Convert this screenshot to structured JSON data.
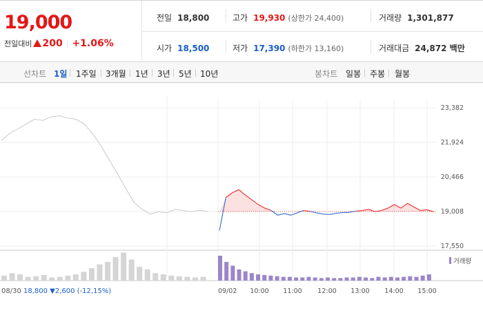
{
  "summary": {
    "current_price": "19,000",
    "change_label": "전일대비",
    "change_amount": "200",
    "change_percent": "+1.06%"
  },
  "stats": {
    "prev_close_label": "전일",
    "prev_close": "18,800",
    "high_label": "고가",
    "high": "19,930",
    "upper_limit": "(상한가 24,400)",
    "volume_label": "거래량",
    "volume": "1,301,877",
    "open_label": "시가",
    "open": "18,500",
    "low_label": "저가",
    "low": "17,390",
    "lower_limit": "(하한가 13,160)",
    "trade_value_label": "거래대금",
    "trade_value": "24,872 백만"
  },
  "tabs": {
    "line_label": "선차트",
    "periods": [
      "1일",
      "1주일",
      "3개월",
      "1년",
      "3년",
      "5년",
      "10년"
    ],
    "active_period": "1일",
    "candle_label": "봉차트",
    "candles": [
      "일봉",
      "주봉",
      "월봉"
    ]
  },
  "colors": {
    "up": "#e51616",
    "down": "#1a5ec9",
    "prev": "#c8c8c8",
    "volume": "#9b86c8"
  },
  "chart_data": {
    "type": "line",
    "y_ticks": [
      "23,382",
      "21,924",
      "20,466",
      "19,008",
      "17,550"
    ],
    "x_ticks": [
      "09/02",
      "10:00",
      "11:00",
      "12:00",
      "13:00",
      "14:00",
      "15:00"
    ],
    "ylim": [
      17550,
      23382
    ],
    "base_price": 19008,
    "prev_day": {
      "values": [
        22000,
        22300,
        22500,
        22700,
        22900,
        22850,
        23000,
        23050,
        22950,
        22900,
        22700,
        22300,
        21800,
        21200,
        20600,
        20000,
        19400,
        19100,
        18900,
        19000,
        18950,
        19100,
        19050,
        19000,
        19050,
        19000
      ]
    },
    "today": {
      "values": [
        18200,
        19600,
        19800,
        19930,
        19700,
        19500,
        19300,
        19150,
        19050,
        18850,
        18920,
        18850,
        18950,
        19050,
        19010,
        18950,
        18900,
        18880,
        18930,
        18960,
        18970,
        19020,
        19050,
        19100,
        19000,
        19050,
        19150,
        19300,
        19150,
        19350,
        19200,
        19050,
        19080,
        19000
      ]
    },
    "volume": {
      "legend": "거래량",
      "prev_day": [
        8,
        12,
        10,
        6,
        7,
        9,
        5,
        6,
        8,
        10,
        14,
        20,
        26,
        30,
        38,
        45,
        34,
        22,
        18,
        12,
        10,
        8,
        7,
        6,
        5,
        6
      ],
      "today": [
        40,
        30,
        24,
        18,
        15,
        12,
        10,
        9,
        8,
        7,
        6,
        6,
        5,
        5,
        6,
        5,
        4,
        5,
        4,
        4,
        5,
        5,
        6,
        5,
        4,
        6,
        5,
        6,
        5,
        6,
        7,
        6,
        8,
        10
      ]
    },
    "footnote": "08/30",
    "footnote_price": "18,800",
    "footnote_change": "2,600",
    "footnote_pct": "(-12,15%)"
  }
}
